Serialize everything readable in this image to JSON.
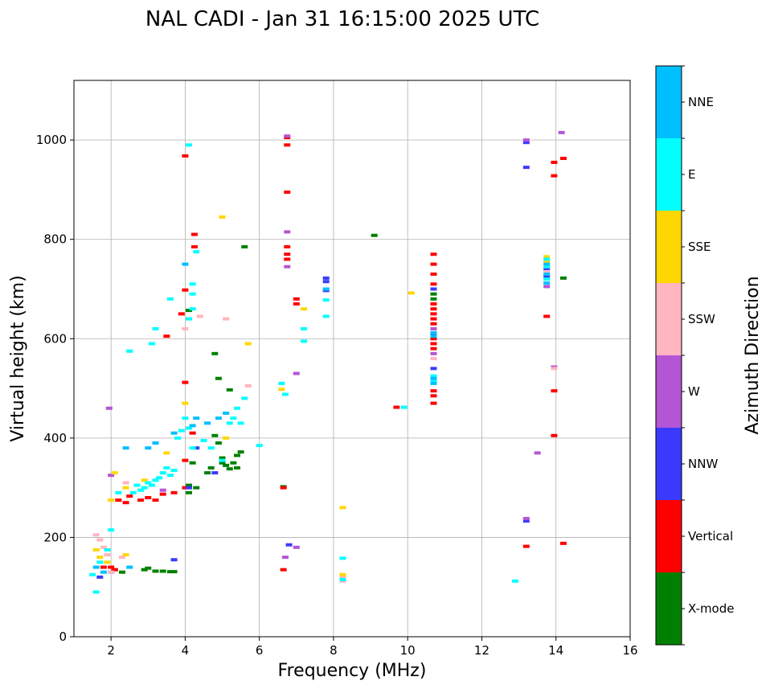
{
  "chart_data": {
    "type": "scatter",
    "title": "NAL CADI - Jan 31 16:15:00 2025 UTC",
    "xlabel": "Frequency (MHz)",
    "ylabel": "Virtual height (km)",
    "xlim": [
      1,
      16
    ],
    "ylim": [
      0,
      1120
    ],
    "xticks": [
      2,
      4,
      6,
      8,
      10,
      12,
      14,
      16
    ],
    "yticks": [
      0,
      200,
      400,
      600,
      800,
      1000
    ],
    "grid": true,
    "colorbar": {
      "label": "Azimuth Direction",
      "categories": [
        {
          "name": "X-mode",
          "color": "#008000"
        },
        {
          "name": "Vertical",
          "color": "#ff0000"
        },
        {
          "name": "NNW",
          "color": "#3a3aff"
        },
        {
          "name": "W",
          "color": "#b455d6"
        },
        {
          "name": "SSW",
          "color": "#ffb6c1"
        },
        {
          "name": "SSE",
          "color": "#ffd700"
        },
        {
          "name": "E",
          "color": "#00ffff"
        },
        {
          "name": "NNE",
          "color": "#00bfff"
        }
      ]
    },
    "series": [
      {
        "name": "X-mode",
        "points": [
          [
            2.3,
            130
          ],
          [
            2.9,
            135
          ],
          [
            3.2,
            132
          ],
          [
            3.6,
            131
          ],
          [
            3.7,
            131
          ],
          [
            3.4,
            132
          ],
          [
            4.1,
            290
          ],
          [
            4.1,
            305
          ],
          [
            4.2,
            350
          ],
          [
            4.3,
            300
          ],
          [
            4.8,
            405
          ],
          [
            4.9,
            390
          ],
          [
            5.0,
            360
          ],
          [
            5.1,
            345
          ],
          [
            5.2,
            338
          ],
          [
            5.3,
            350
          ],
          [
            5.4,
            365
          ],
          [
            5.5,
            372
          ],
          [
            4.6,
            330
          ],
          [
            4.7,
            340
          ],
          [
            4.8,
            570
          ],
          [
            4.9,
            520
          ],
          [
            5.2,
            497
          ],
          [
            5.6,
            785
          ],
          [
            4.1,
            657
          ],
          [
            5.0,
            350
          ],
          [
            5.4,
            340
          ],
          [
            6.65,
            302
          ],
          [
            9.1,
            808
          ],
          [
            10.7,
            700
          ],
          [
            10.7,
            690
          ],
          [
            10.7,
            680
          ],
          [
            14.2,
            722
          ],
          [
            2.1,
            135
          ],
          [
            3.0,
            138
          ]
        ]
      },
      {
        "name": "Vertical",
        "points": [
          [
            1.8,
            140
          ],
          [
            2.0,
            140
          ],
          [
            2.1,
            135
          ],
          [
            2.2,
            275
          ],
          [
            2.4,
            270
          ],
          [
            2.5,
            283
          ],
          [
            2.8,
            275
          ],
          [
            3.0,
            280
          ],
          [
            3.2,
            275
          ],
          [
            3.4,
            287
          ],
          [
            3.7,
            290
          ],
          [
            4.0,
            300
          ],
          [
            4.0,
            355
          ],
          [
            4.2,
            410
          ],
          [
            4.0,
            512
          ],
          [
            4.0,
            698
          ],
          [
            4.0,
            968
          ],
          [
            4.25,
            810
          ],
          [
            4.25,
            785
          ],
          [
            3.9,
            650
          ],
          [
            3.5,
            605
          ],
          [
            6.65,
            300
          ],
          [
            6.65,
            135
          ],
          [
            6.75,
            1005
          ],
          [
            6.75,
            990
          ],
          [
            6.75,
            895
          ],
          [
            6.75,
            785
          ],
          [
            6.75,
            770
          ],
          [
            6.75,
            760
          ],
          [
            7.0,
            680
          ],
          [
            7.0,
            670
          ],
          [
            9.7,
            462
          ],
          [
            10.7,
            770
          ],
          [
            10.7,
            750
          ],
          [
            10.7,
            730
          ],
          [
            10.7,
            710
          ],
          [
            10.7,
            670
          ],
          [
            10.7,
            660
          ],
          [
            10.7,
            650
          ],
          [
            10.7,
            640
          ],
          [
            10.7,
            630
          ],
          [
            10.7,
            600
          ],
          [
            10.7,
            590
          ],
          [
            10.7,
            580
          ],
          [
            10.7,
            495
          ],
          [
            10.7,
            485
          ],
          [
            10.7,
            470
          ],
          [
            13.2,
            182
          ],
          [
            13.75,
            645
          ],
          [
            13.95,
            955
          ],
          [
            13.95,
            928
          ],
          [
            13.95,
            495
          ],
          [
            13.95,
            405
          ],
          [
            14.2,
            963
          ],
          [
            14.2,
            188
          ]
        ]
      },
      {
        "name": "NNW",
        "points": [
          [
            1.7,
            120
          ],
          [
            2.0,
            130
          ],
          [
            3.7,
            155
          ],
          [
            4.3,
            380
          ],
          [
            4.8,
            330
          ],
          [
            6.8,
            185
          ],
          [
            7.8,
            722
          ],
          [
            7.8,
            715
          ],
          [
            7.8,
            697
          ],
          [
            10.7,
            540
          ],
          [
            10.7,
            610
          ],
          [
            13.2,
            995
          ],
          [
            13.2,
            945
          ],
          [
            13.2,
            233
          ],
          [
            13.75,
            740
          ],
          [
            13.75,
            725
          ],
          [
            10.7,
            700
          ],
          [
            4.1,
            300
          ]
        ]
      },
      {
        "name": "W",
        "points": [
          [
            1.95,
            460
          ],
          [
            2.0,
            325
          ],
          [
            3.4,
            295
          ],
          [
            6.7,
            160
          ],
          [
            6.75,
            745
          ],
          [
            6.75,
            815
          ],
          [
            6.75,
            1008
          ],
          [
            7.0,
            530
          ],
          [
            10.7,
            570
          ],
          [
            10.7,
            620
          ],
          [
            13.2,
            1000
          ],
          [
            13.5,
            370
          ],
          [
            13.75,
            705
          ],
          [
            13.95,
            543
          ],
          [
            14.15,
            1015
          ],
          [
            13.2,
            238
          ],
          [
            7.0,
            180
          ]
        ]
      },
      {
        "name": "SSW",
        "points": [
          [
            1.6,
            205
          ],
          [
            1.7,
            195
          ],
          [
            1.8,
            180
          ],
          [
            1.9,
            165
          ],
          [
            2.0,
            130
          ],
          [
            2.3,
            160
          ],
          [
            2.4,
            310
          ],
          [
            4.0,
            620
          ],
          [
            4.4,
            645
          ],
          [
            5.7,
            505
          ],
          [
            8.25,
            120
          ],
          [
            8.25,
            112
          ],
          [
            10.7,
            560
          ],
          [
            13.75,
            735
          ],
          [
            13.95,
            540
          ],
          [
            5.1,
            640
          ]
        ]
      },
      {
        "name": "SSE",
        "points": [
          [
            1.6,
            175
          ],
          [
            1.7,
            160
          ],
          [
            1.9,
            150
          ],
          [
            2.0,
            275
          ],
          [
            2.1,
            330
          ],
          [
            2.4,
            300
          ],
          [
            2.9,
            315
          ],
          [
            3.5,
            370
          ],
          [
            5.0,
            845
          ],
          [
            5.1,
            400
          ],
          [
            5.7,
            590
          ],
          [
            6.6,
            498
          ],
          [
            7.2,
            660
          ],
          [
            8.25,
            260
          ],
          [
            8.25,
            125
          ],
          [
            10.1,
            692
          ],
          [
            13.75,
            765
          ],
          [
            13.75,
            755
          ],
          [
            2.4,
            165
          ],
          [
            4.0,
            470
          ]
        ]
      },
      {
        "name": "E",
        "points": [
          [
            1.5,
            125
          ],
          [
            1.6,
            90
          ],
          [
            1.7,
            150
          ],
          [
            1.9,
            175
          ],
          [
            2.0,
            215
          ],
          [
            2.2,
            290
          ],
          [
            2.5,
            575
          ],
          [
            2.6,
            290
          ],
          [
            2.7,
            305
          ],
          [
            2.8,
            295
          ],
          [
            2.9,
            300
          ],
          [
            3.0,
            310
          ],
          [
            3.1,
            305
          ],
          [
            3.2,
            315
          ],
          [
            3.3,
            320
          ],
          [
            3.4,
            330
          ],
          [
            3.5,
            340
          ],
          [
            3.6,
            325
          ],
          [
            3.7,
            335
          ],
          [
            3.8,
            400
          ],
          [
            3.9,
            415
          ],
          [
            4.0,
            440
          ],
          [
            4.1,
            420
          ],
          [
            4.2,
            380
          ],
          [
            4.1,
            990
          ],
          [
            4.1,
            640
          ],
          [
            4.2,
            690
          ],
          [
            4.2,
            710
          ],
          [
            4.2,
            660
          ],
          [
            4.3,
            775
          ],
          [
            3.2,
            620
          ],
          [
            3.1,
            590
          ],
          [
            3.6,
            680
          ],
          [
            4.5,
            395
          ],
          [
            4.7,
            380
          ],
          [
            5.0,
            355
          ],
          [
            5.2,
            430
          ],
          [
            5.3,
            440
          ],
          [
            5.4,
            460
          ],
          [
            5.5,
            430
          ],
          [
            5.6,
            480
          ],
          [
            6.0,
            385
          ],
          [
            6.6,
            510
          ],
          [
            6.7,
            488
          ],
          [
            7.2,
            595
          ],
          [
            7.2,
            620
          ],
          [
            7.8,
            678
          ],
          [
            7.8,
            645
          ],
          [
            8.25,
            158
          ],
          [
            8.25,
            115
          ],
          [
            9.9,
            462
          ],
          [
            10.7,
            525
          ],
          [
            10.7,
            515
          ],
          [
            12.9,
            112
          ],
          [
            13.75,
            720
          ],
          [
            13.75,
            745
          ],
          [
            13.75,
            760
          ]
        ]
      },
      {
        "name": "NNE",
        "points": [
          [
            1.6,
            140
          ],
          [
            1.8,
            130
          ],
          [
            2.4,
            380
          ],
          [
            2.5,
            140
          ],
          [
            3.0,
            380
          ],
          [
            3.2,
            390
          ],
          [
            3.7,
            410
          ],
          [
            4.0,
            750
          ],
          [
            4.2,
            425
          ],
          [
            4.3,
            440
          ],
          [
            4.6,
            430
          ],
          [
            4.9,
            440
          ],
          [
            5.1,
            450
          ],
          [
            7.8,
            700
          ],
          [
            10.7,
            510
          ],
          [
            10.7,
            520
          ],
          [
            10.7,
            605
          ],
          [
            10.7,
            612
          ],
          [
            13.75,
            730
          ],
          [
            13.75,
            750
          ],
          [
            13.75,
            712
          ]
        ]
      }
    ]
  }
}
